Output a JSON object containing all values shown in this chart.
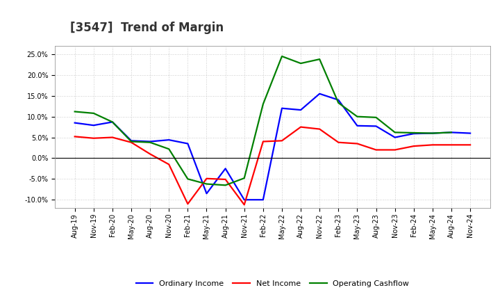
{
  "title": "[3547]  Trend of Margin",
  "x_labels": [
    "Aug-19",
    "Nov-19",
    "Feb-20",
    "May-20",
    "Aug-20",
    "Nov-20",
    "Feb-21",
    "May-21",
    "Aug-21",
    "Nov-21",
    "Feb-22",
    "May-22",
    "Aug-22",
    "Nov-22",
    "Feb-23",
    "May-23",
    "Aug-23",
    "Nov-23",
    "Feb-24",
    "May-24",
    "Aug-24",
    "Nov-24"
  ],
  "ordinary_income": [
    8.5,
    7.9,
    8.7,
    4.2,
    4.0,
    4.4,
    3.5,
    -8.5,
    -2.5,
    -10.0,
    -10.0,
    12.0,
    11.6,
    15.5,
    14.0,
    7.8,
    7.7,
    5.0,
    5.9,
    6.0,
    6.2,
    6.0
  ],
  "net_income": [
    5.2,
    4.8,
    5.0,
    3.8,
    1.0,
    -1.5,
    -11.0,
    -4.9,
    -5.1,
    -11.2,
    4.0,
    4.2,
    7.5,
    7.0,
    3.8,
    3.5,
    2.0,
    2.0,
    2.9,
    3.2,
    3.2,
    3.2
  ],
  "operating_cashflow": [
    11.2,
    10.8,
    8.7,
    4.0,
    3.8,
    2.2,
    -5.0,
    -6.2,
    -6.5,
    -4.8,
    13.0,
    24.5,
    22.8,
    23.8,
    13.3,
    10.0,
    9.8,
    6.2,
    6.1,
    6.0,
    6.2,
    null
  ],
  "ylim": [
    -12,
    27
  ],
  "yticks": [
    -10,
    -5,
    0,
    5,
    10,
    15,
    20,
    25
  ],
  "colors": {
    "ordinary_income": "#0000FF",
    "net_income": "#FF0000",
    "operating_cashflow": "#008000"
  },
  "legend_labels": [
    "Ordinary Income",
    "Net Income",
    "Operating Cashflow"
  ],
  "background_color": "#FFFFFF",
  "grid_color": "#BBBBBB",
  "line_width": 1.6,
  "title_fontsize": 12,
  "tick_fontsize": 7,
  "legend_fontsize": 8
}
